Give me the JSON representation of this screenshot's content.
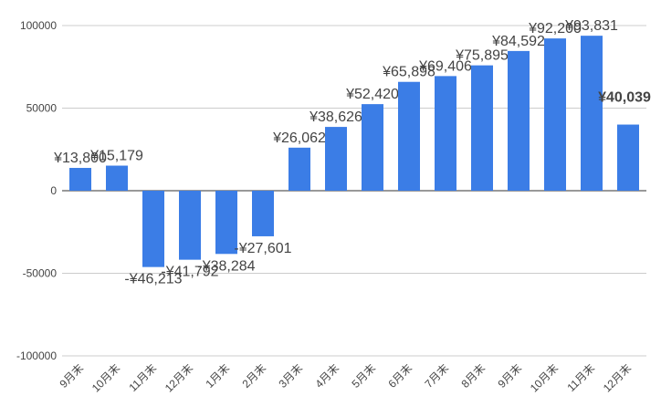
{
  "chart_data": {
    "type": "bar",
    "categories": [
      "9月末",
      "10月末",
      "11月末",
      "12月末",
      "1月末",
      "2月末",
      "3月末",
      "4月末",
      "5月末",
      "6月末",
      "7月末",
      "8月末",
      "9月末",
      "10月末",
      "11月末",
      "12月末"
    ],
    "values": [
      13800,
      15179,
      -46213,
      -41792,
      -38284,
      -27601,
      26062,
      38626,
      52420,
      65898,
      69406,
      75895,
      84592,
      92200,
      93831,
      40039
    ],
    "value_labels": [
      "¥13,800",
      "¥15,179",
      "-¥46,213",
      "-¥41,792",
      "-¥38,284",
      "-¥27,601",
      "¥26,062",
      "¥38,626",
      "¥52,420",
      "¥65,898",
      "¥69,406",
      "¥75,895",
      "¥84,592",
      "¥92,200",
      "¥93,831",
      "¥40,039"
    ],
    "color": "#3b7de6",
    "ylim": [
      -100000,
      100000
    ],
    "yticks": [
      -100000,
      -50000,
      0,
      50000,
      100000
    ],
    "grid": true
  }
}
